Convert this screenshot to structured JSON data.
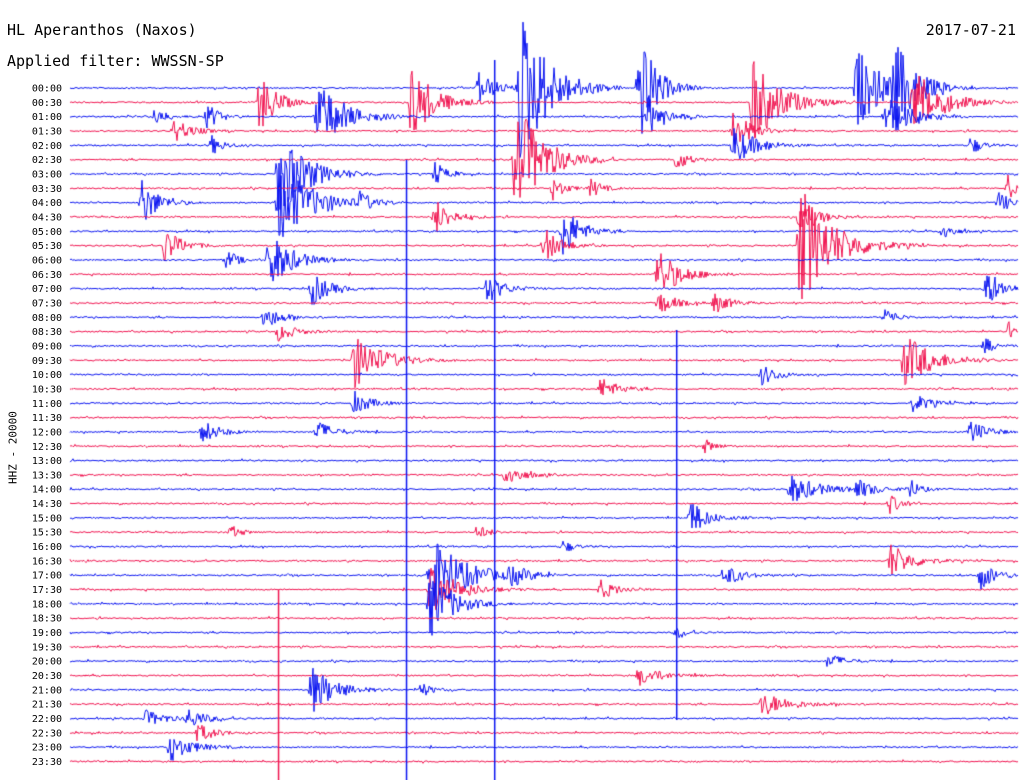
{
  "header": {
    "station": "HL Aperanthos (Naxos)",
    "date": "2017-07-21",
    "filter": "Applied filter: WWSSN-SP",
    "channel": "HHZ - 20000"
  },
  "colors": {
    "blue": "#0a14f0",
    "red": "#f01450",
    "background": "#ffffff",
    "text": "#000000"
  },
  "chart_data": {
    "type": "line",
    "ylabel": "HHZ - 20000",
    "tick_labels": [
      "00:00",
      "00:30",
      "01:00",
      "01:30",
      "02:00",
      "02:30",
      "03:00",
      "03:30",
      "04:00",
      "04:30",
      "05:00",
      "05:30",
      "06:00",
      "06:30",
      "07:00",
      "07:30",
      "08:00",
      "08:30",
      "09:00",
      "09:30",
      "10:00",
      "10:30",
      "11:00",
      "11:30",
      "12:00",
      "12:30",
      "13:00",
      "13:30",
      "14:00",
      "14:30",
      "15:00",
      "15:30",
      "16:00",
      "16:30",
      "17:00",
      "17:30",
      "18:00",
      "18:30",
      "19:00",
      "19:30",
      "20:00",
      "20:30",
      "21:00",
      "21:30",
      "22:00",
      "22:30",
      "23:00",
      "23:30"
    ],
    "trace_colors": [
      "blue",
      "red"
    ],
    "noise_level": 0.7,
    "events": [
      {
        "line": 0,
        "pos": 0.43,
        "amp": 18,
        "len": 0.03
      },
      {
        "line": 0,
        "pos": 0.475,
        "amp": 80,
        "len": 0.05
      },
      {
        "line": 0,
        "pos": 0.6,
        "amp": 60,
        "len": 0.03
      },
      {
        "line": 0,
        "pos": 0.83,
        "amp": 40,
        "len": 0.05
      },
      {
        "line": 0,
        "pos": 0.87,
        "amp": 38,
        "len": 0.04
      },
      {
        "line": 1,
        "pos": 0.2,
        "amp": 30,
        "len": 0.03
      },
      {
        "line": 1,
        "pos": 0.36,
        "amp": 40,
        "len": 0.04
      },
      {
        "line": 1,
        "pos": 0.72,
        "amp": 45,
        "len": 0.05
      },
      {
        "line": 1,
        "pos": 0.89,
        "amp": 35,
        "len": 0.05
      },
      {
        "line": 2,
        "pos": 0.09,
        "amp": 10,
        "len": 0.02
      },
      {
        "line": 2,
        "pos": 0.145,
        "amp": 14,
        "len": 0.02
      },
      {
        "line": 2,
        "pos": 0.26,
        "amp": 35,
        "len": 0.05
      },
      {
        "line": 2,
        "pos": 0.61,
        "amp": 20,
        "len": 0.03
      },
      {
        "line": 2,
        "pos": 0.86,
        "amp": 25,
        "len": 0.04
      },
      {
        "line": 3,
        "pos": 0.11,
        "amp": 12,
        "len": 0.03
      },
      {
        "line": 3,
        "pos": 0.7,
        "amp": 22,
        "len": 0.03
      },
      {
        "line": 4,
        "pos": 0.15,
        "amp": 10,
        "len": 0.02
      },
      {
        "line": 4,
        "pos": 0.7,
        "amp": 20,
        "len": 0.04
      },
      {
        "line": 4,
        "pos": 0.95,
        "amp": 9,
        "len": 0.02
      },
      {
        "line": 5,
        "pos": 0.47,
        "amp": 60,
        "len": 0.05
      },
      {
        "line": 5,
        "pos": 0.64,
        "amp": 12,
        "len": 0.02
      },
      {
        "line": 6,
        "pos": 0.22,
        "amp": 45,
        "len": 0.05
      },
      {
        "line": 6,
        "pos": 0.385,
        "amp": 12,
        "len": 0.02
      },
      {
        "line": 7,
        "pos": 0.51,
        "amp": 12,
        "len": 0.02
      },
      {
        "line": 7,
        "pos": 0.55,
        "amp": 10,
        "len": 0.02
      },
      {
        "line": 7,
        "pos": 0.99,
        "amp": 16,
        "len": 0.01
      },
      {
        "line": 8,
        "pos": 0.075,
        "amp": 25,
        "len": 0.03
      },
      {
        "line": 8,
        "pos": 0.22,
        "amp": 40,
        "len": 0.06
      },
      {
        "line": 8,
        "pos": 0.305,
        "amp": 10,
        "len": 0.02
      },
      {
        "line": 8,
        "pos": 0.98,
        "amp": 12,
        "len": 0.02
      },
      {
        "line": 9,
        "pos": 0.385,
        "amp": 18,
        "len": 0.03
      },
      {
        "line": 9,
        "pos": 0.77,
        "amp": 20,
        "len": 0.03
      },
      {
        "line": 10,
        "pos": 0.52,
        "amp": 28,
        "len": 0.03
      },
      {
        "line": 10,
        "pos": 0.92,
        "amp": 10,
        "len": 0.02
      },
      {
        "line": 11,
        "pos": 0.1,
        "amp": 18,
        "len": 0.03
      },
      {
        "line": 11,
        "pos": 0.5,
        "amp": 18,
        "len": 0.03
      },
      {
        "line": 11,
        "pos": 0.77,
        "amp": 60,
        "len": 0.06
      },
      {
        "line": 12,
        "pos": 0.165,
        "amp": 10,
        "len": 0.02
      },
      {
        "line": 12,
        "pos": 0.21,
        "amp": 30,
        "len": 0.04
      },
      {
        "line": 13,
        "pos": 0.62,
        "amp": 25,
        "len": 0.04
      },
      {
        "line": 14,
        "pos": 0.255,
        "amp": 18,
        "len": 0.03
      },
      {
        "line": 14,
        "pos": 0.44,
        "amp": 15,
        "len": 0.03
      },
      {
        "line": 14,
        "pos": 0.965,
        "amp": 20,
        "len": 0.03
      },
      {
        "line": 15,
        "pos": 0.62,
        "amp": 12,
        "len": 0.03
      },
      {
        "line": 15,
        "pos": 0.68,
        "amp": 10,
        "len": 0.03
      },
      {
        "line": 16,
        "pos": 0.205,
        "amp": 12,
        "len": 0.03
      },
      {
        "line": 16,
        "pos": 0.86,
        "amp": 10,
        "len": 0.02
      },
      {
        "line": 17,
        "pos": 0.22,
        "amp": 10,
        "len": 0.03
      },
      {
        "line": 17,
        "pos": 0.99,
        "amp": 10,
        "len": 0.02
      },
      {
        "line": 18,
        "pos": 0.965,
        "amp": 8,
        "len": 0.02
      },
      {
        "line": 19,
        "pos": 0.3,
        "amp": 28,
        "len": 0.05
      },
      {
        "line": 19,
        "pos": 0.88,
        "amp": 28,
        "len": 0.05
      },
      {
        "line": 20,
        "pos": 0.73,
        "amp": 10,
        "len": 0.03
      },
      {
        "line": 21,
        "pos": 0.56,
        "amp": 12,
        "len": 0.03
      },
      {
        "line": 22,
        "pos": 0.3,
        "amp": 12,
        "len": 0.03
      },
      {
        "line": 22,
        "pos": 0.89,
        "amp": 10,
        "len": 0.03
      },
      {
        "line": 24,
        "pos": 0.14,
        "amp": 12,
        "len": 0.03
      },
      {
        "line": 24,
        "pos": 0.26,
        "amp": 12,
        "len": 0.03
      },
      {
        "line": 24,
        "pos": 0.95,
        "amp": 12,
        "len": 0.03
      },
      {
        "line": 25,
        "pos": 0.67,
        "amp": 7,
        "len": 0.02
      },
      {
        "line": 27,
        "pos": 0.46,
        "amp": 12,
        "len": 0.03
      },
      {
        "line": 28,
        "pos": 0.76,
        "amp": 15,
        "len": 0.05
      },
      {
        "line": 28,
        "pos": 0.83,
        "amp": 10,
        "len": 0.03
      },
      {
        "line": 28,
        "pos": 0.885,
        "amp": 10,
        "len": 0.02
      },
      {
        "line": 29,
        "pos": 0.865,
        "amp": 10,
        "len": 0.02
      },
      {
        "line": 30,
        "pos": 0.655,
        "amp": 18,
        "len": 0.03
      },
      {
        "line": 31,
        "pos": 0.17,
        "amp": 7,
        "len": 0.02
      },
      {
        "line": 31,
        "pos": 0.43,
        "amp": 8,
        "len": 0.02
      },
      {
        "line": 32,
        "pos": 0.52,
        "amp": 6,
        "len": 0.02
      },
      {
        "line": 33,
        "pos": 0.865,
        "amp": 18,
        "len": 0.04
      },
      {
        "line": 34,
        "pos": 0.38,
        "amp": 40,
        "len": 0.06
      },
      {
        "line": 34,
        "pos": 0.465,
        "amp": 10,
        "len": 0.03
      },
      {
        "line": 34,
        "pos": 0.69,
        "amp": 12,
        "len": 0.03
      },
      {
        "line": 34,
        "pos": 0.96,
        "amp": 15,
        "len": 0.03
      },
      {
        "line": 35,
        "pos": 0.38,
        "amp": 25,
        "len": 0.05
      },
      {
        "line": 35,
        "pos": 0.56,
        "amp": 10,
        "len": 0.03
      },
      {
        "line": 36,
        "pos": 0.38,
        "amp": 35,
        "len": 0.04
      },
      {
        "line": 38,
        "pos": 0.64,
        "amp": 6,
        "len": 0.02
      },
      {
        "line": 40,
        "pos": 0.8,
        "amp": 8,
        "len": 0.03
      },
      {
        "line": 41,
        "pos": 0.6,
        "amp": 10,
        "len": 0.04
      },
      {
        "line": 42,
        "pos": 0.255,
        "amp": 25,
        "len": 0.04
      },
      {
        "line": 42,
        "pos": 0.37,
        "amp": 8,
        "len": 0.02
      },
      {
        "line": 43,
        "pos": 0.73,
        "amp": 12,
        "len": 0.05
      },
      {
        "line": 44,
        "pos": 0.08,
        "amp": 8,
        "len": 0.04
      },
      {
        "line": 44,
        "pos": 0.125,
        "amp": 10,
        "len": 0.03
      },
      {
        "line": 45,
        "pos": 0.135,
        "amp": 10,
        "len": 0.03
      },
      {
        "line": 46,
        "pos": 0.105,
        "amp": 14,
        "len": 0.04
      }
    ]
  }
}
